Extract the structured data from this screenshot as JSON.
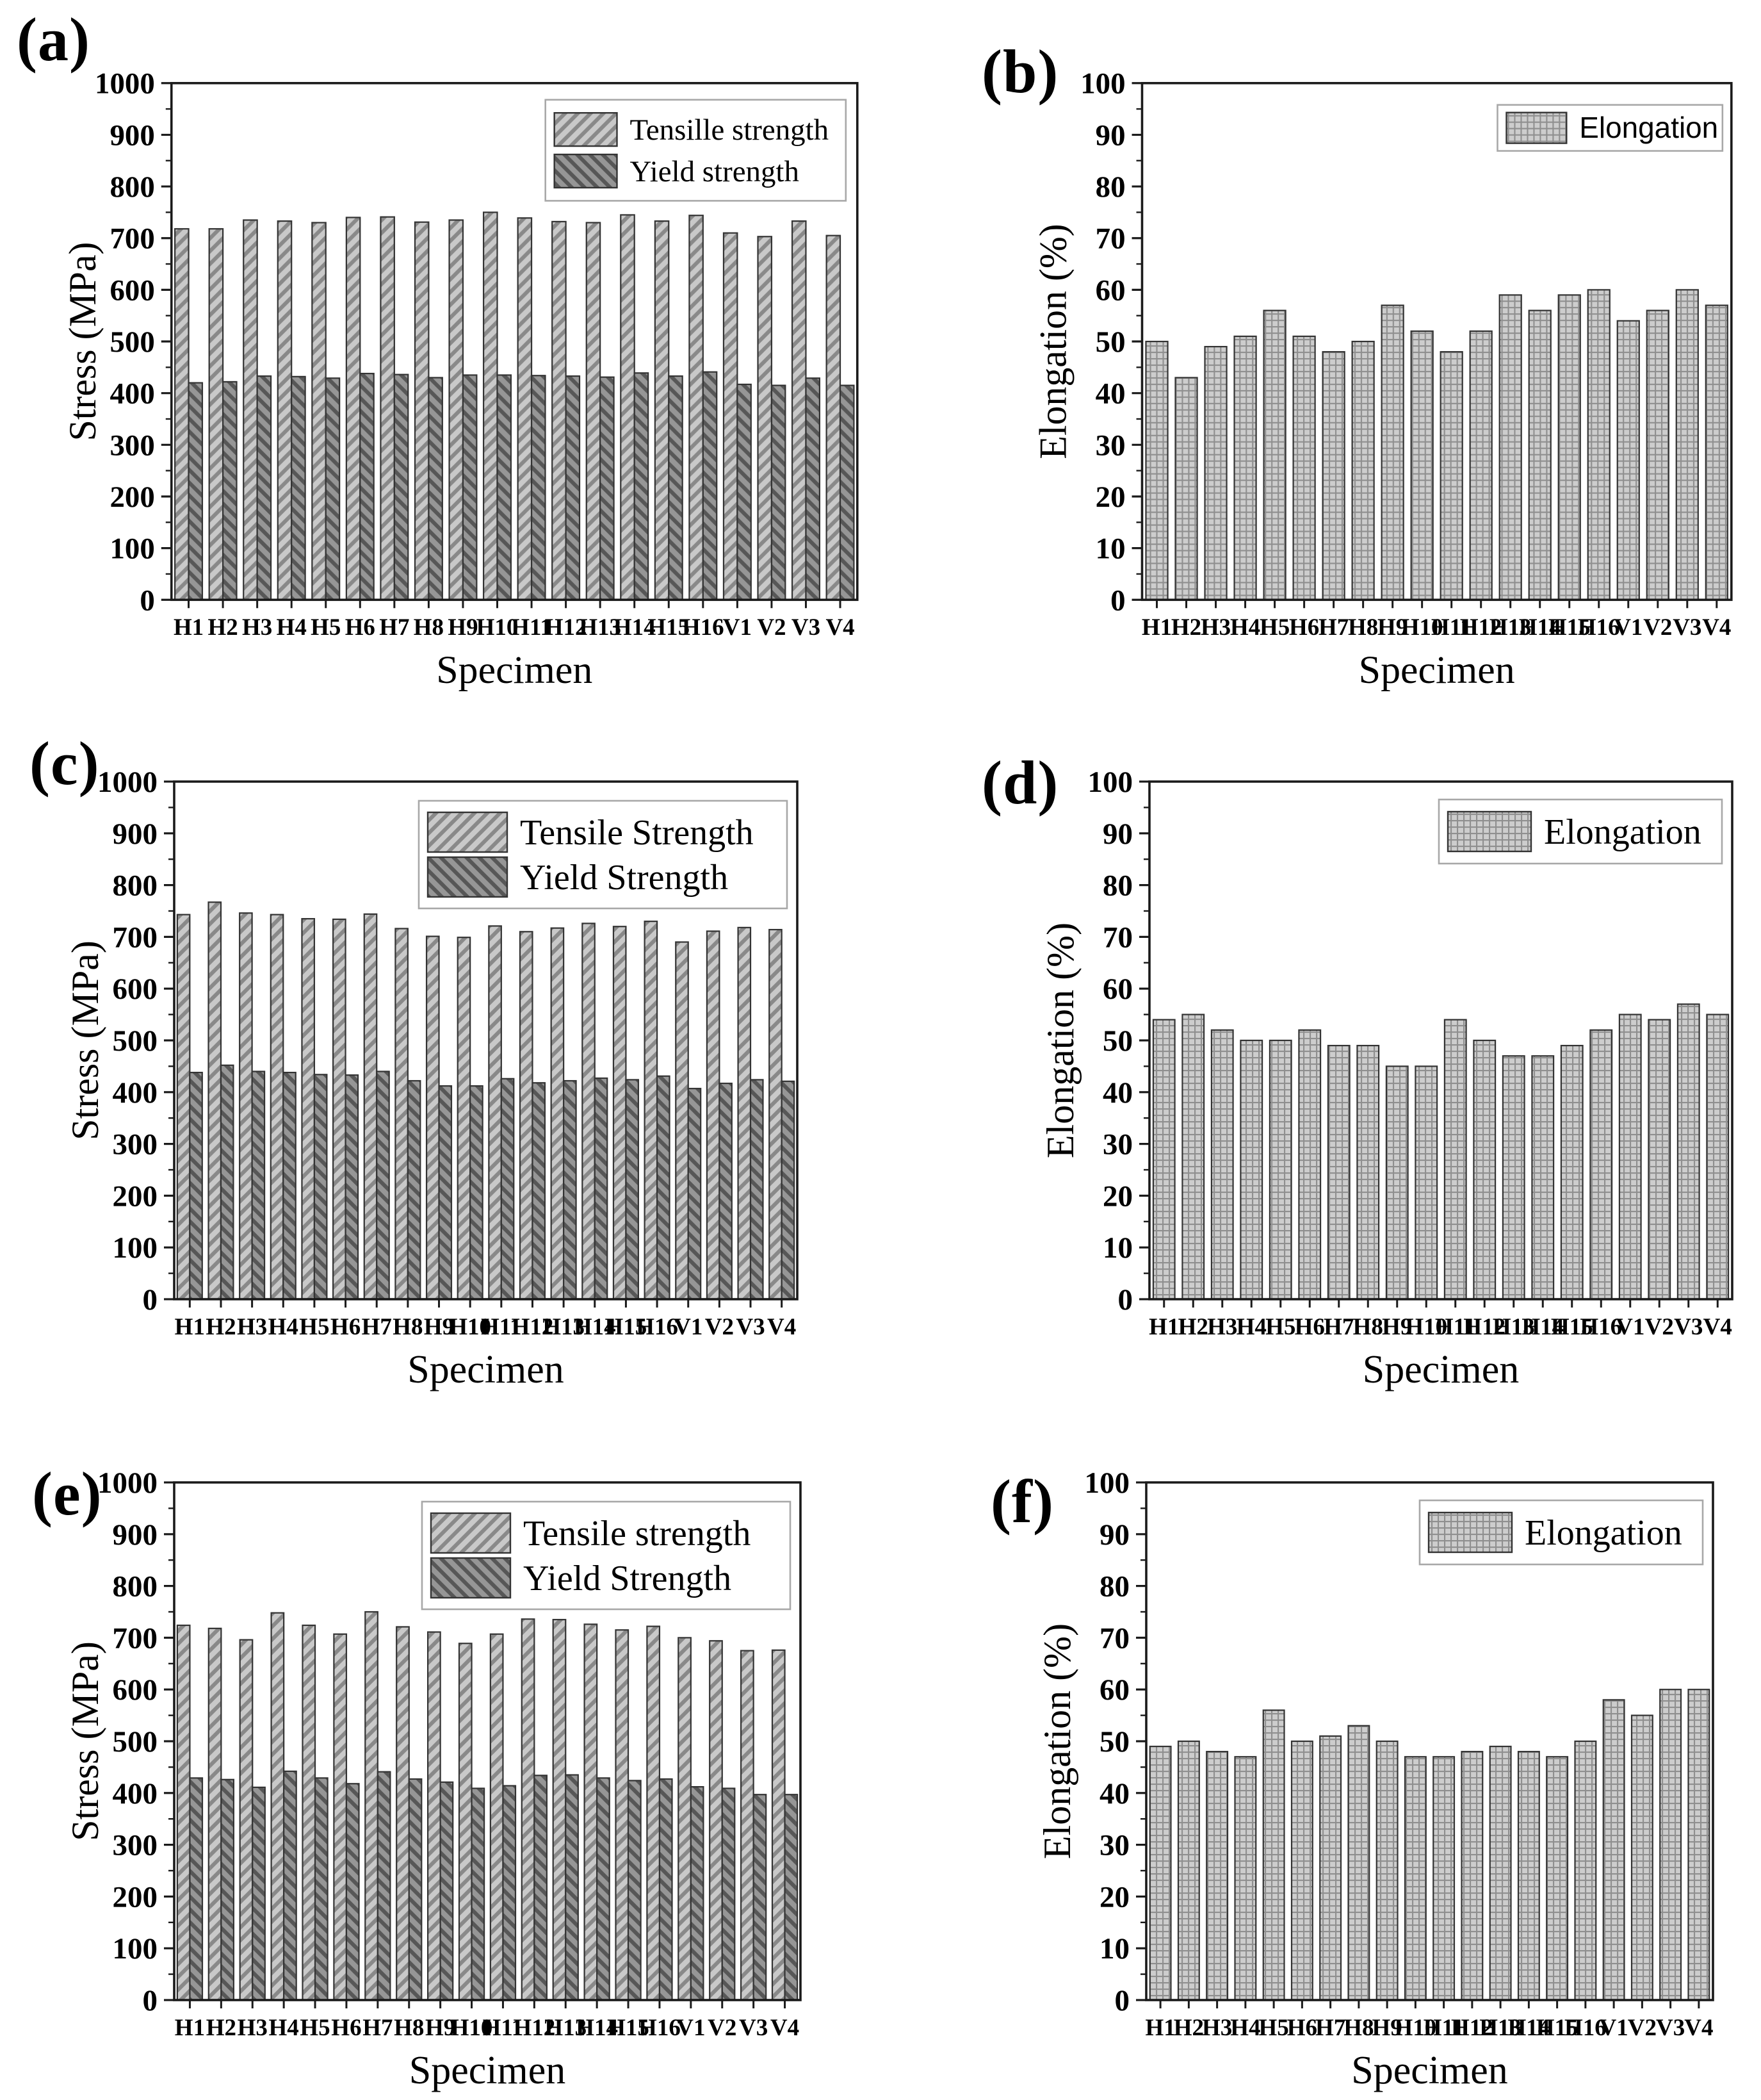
{
  "figure": {
    "background": "#ffffff"
  },
  "colors": {
    "tensile_fill": "#c9c9c9",
    "tensile_hatch": "#898989",
    "yield_fill": "#969696",
    "yield_hatch": "#575757",
    "elongation_fill": "#cdcdcd",
    "elongation_hatch": "#8f8f8f",
    "bar_outline": "#333333",
    "axis": "#1a1a1a",
    "legend_border": "#a8a8a8"
  },
  "chart_data": [
    {
      "panel": "(a)",
      "type": "bar",
      "variant": "stress",
      "xlabel": "Specimen",
      "ylabel": "Stress (MPa)",
      "ylim": [
        0,
        1000
      ],
      "ytick_step": 100,
      "grid": false,
      "legend_position": "top-right",
      "legend_style": "small-serif",
      "categories": [
        "H1",
        "H2",
        "H3",
        "H4",
        "H5",
        "H6",
        "H7",
        "H8",
        "H9",
        "H10",
        "H11",
        "H12",
        "H13",
        "H14",
        "H15",
        "H16",
        "V1",
        "V2",
        "V3",
        "V4"
      ],
      "series": [
        {
          "name": "Tensille strength",
          "pattern": "tensile",
          "values": [
            718,
            718,
            735,
            733,
            730,
            740,
            741,
            731,
            735,
            750,
            739,
            732,
            730,
            745,
            733,
            744,
            710,
            703,
            733,
            705
          ]
        },
        {
          "name": "Yield strength",
          "pattern": "yield",
          "values": [
            420,
            422,
            433,
            432,
            429,
            438,
            436,
            430,
            435,
            435,
            434,
            433,
            431,
            439,
            433,
            441,
            417,
            415,
            429,
            415
          ]
        }
      ]
    },
    {
      "panel": "(b)",
      "type": "bar",
      "variant": "elongation",
      "xlabel": "Specimen",
      "ylabel": "Elongation (%)",
      "ylim": [
        0,
        100
      ],
      "ytick_step": 10,
      "grid": false,
      "legend_position": "top-right",
      "legend_style": "compact-sans",
      "categories": [
        "H1",
        "H2",
        "H3",
        "H4",
        "H5",
        "H6",
        "H7",
        "H8",
        "H9",
        "H10",
        "H11",
        "H12",
        "H13",
        "H14",
        "H15",
        "H16",
        "V1",
        "V2",
        "V3",
        "V4"
      ],
      "series": [
        {
          "name": "Elongation",
          "pattern": "elongation",
          "values": [
            50,
            43,
            49,
            51,
            56,
            51,
            48,
            50,
            57,
            52,
            48,
            52,
            59,
            56,
            59,
            60,
            54,
            56,
            60,
            57
          ]
        }
      ]
    },
    {
      "panel": "(c)",
      "type": "bar",
      "variant": "stress",
      "xlabel": "Specimen",
      "ylabel": "Stress (MPa)",
      "ylim": [
        0,
        1000
      ],
      "ytick_step": 100,
      "grid": false,
      "legend_position": "top-right",
      "legend_style": "large-serif",
      "categories": [
        "H1",
        "H2",
        "H3",
        "H4",
        "H5",
        "H6",
        "H7",
        "H8",
        "H9",
        "H10",
        "H11",
        "H12",
        "H13",
        "H14",
        "H15",
        "H16",
        "V1",
        "V2",
        "V3",
        "V4"
      ],
      "series": [
        {
          "name": "Tensile Strength",
          "pattern": "tensile",
          "values": [
            743,
            767,
            746,
            743,
            735,
            734,
            744,
            716,
            701,
            699,
            721,
            710,
            717,
            726,
            720,
            730,
            690,
            711,
            718,
            714
          ]
        },
        {
          "name": "Yield Strength",
          "pattern": "yield",
          "values": [
            438,
            452,
            440,
            438,
            434,
            433,
            440,
            422,
            412,
            412,
            426,
            418,
            422,
            427,
            424,
            431,
            407,
            417,
            424,
            421
          ]
        }
      ]
    },
    {
      "panel": "(d)",
      "type": "bar",
      "variant": "elongation",
      "xlabel": "Specimen",
      "ylabel": "Elongation (%)",
      "ylim": [
        0,
        100
      ],
      "ytick_step": 10,
      "grid": false,
      "legend_position": "top-right",
      "legend_style": "medium-serif",
      "categories": [
        "H1",
        "H2",
        "H3",
        "H4",
        "H5",
        "H6",
        "H7",
        "H8",
        "H9",
        "H10",
        "H11",
        "H12",
        "H13",
        "H14",
        "H15",
        "H16",
        "V1",
        "V2",
        "V3",
        "V4"
      ],
      "series": [
        {
          "name": "Elongation",
          "pattern": "elongation",
          "values": [
            54,
            55,
            52,
            50,
            50,
            52,
            49,
            49,
            45,
            45,
            54,
            50,
            47,
            47,
            49,
            52,
            55,
            54,
            57,
            55
          ]
        }
      ]
    },
    {
      "panel": "(e)",
      "type": "bar",
      "variant": "stress",
      "xlabel": "Specimen",
      "ylabel": "Stress (MPa)",
      "ylim": [
        0,
        1000
      ],
      "ytick_step": 100,
      "grid": false,
      "legend_position": "top-right",
      "legend_style": "large-serif",
      "categories": [
        "H1",
        "H2",
        "H3",
        "H4",
        "H5",
        "H6",
        "H7",
        "H8",
        "H9",
        "H10",
        "H11",
        "H12",
        "H13",
        "H14",
        "H15",
        "H16",
        "V1",
        "V2",
        "V3",
        "V4"
      ],
      "series": [
        {
          "name": "Tensile strength",
          "pattern": "tensile",
          "values": [
            724,
            718,
            696,
            748,
            724,
            707,
            750,
            721,
            711,
            689,
            707,
            736,
            735,
            726,
            715,
            722,
            700,
            694,
            675,
            676
          ]
        },
        {
          "name": "Yield Strength",
          "pattern": "yield",
          "values": [
            429,
            426,
            411,
            442,
            429,
            418,
            441,
            427,
            421,
            409,
            414,
            434,
            435,
            429,
            424,
            427,
            412,
            409,
            397,
            397
          ]
        }
      ]
    },
    {
      "panel": "(f)",
      "type": "bar",
      "variant": "elongation",
      "xlabel": "Specimen",
      "ylabel": "Elongation (%)",
      "ylim": [
        0,
        100
      ],
      "ytick_step": 10,
      "grid": false,
      "legend_position": "top-right",
      "legend_style": "medium-serif",
      "categories": [
        "H1",
        "H2",
        "H3",
        "H4",
        "H5",
        "H6",
        "H7",
        "H8",
        "H9",
        "H10",
        "H11",
        "H12",
        "H13",
        "H14",
        "H15",
        "H16",
        "V1",
        "V2",
        "V3",
        "V4"
      ],
      "series": [
        {
          "name": "Elongation",
          "pattern": "elongation",
          "values": [
            49,
            50,
            48,
            47,
            56,
            50,
            51,
            53,
            50,
            47,
            47,
            48,
            49,
            48,
            47,
            50,
            58,
            55,
            60,
            60
          ]
        }
      ]
    }
  ]
}
